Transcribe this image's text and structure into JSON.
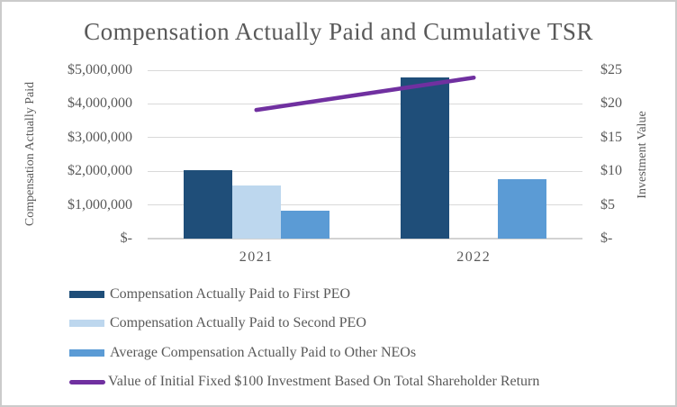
{
  "window": {
    "background": "#FFFFFF",
    "border_color": "#CBCBCB"
  },
  "chart_data": {
    "type": "bar+line combo",
    "title": "Compensation Actually Paid and Cumulative TSR",
    "categories": [
      "2021",
      "2022"
    ],
    "series": [
      {
        "name": "Compensation Actually Paid to First PEO",
        "type": "bar",
        "axis": "left",
        "color": "#1F4E79",
        "values": [
          2040000,
          4790000
        ]
      },
      {
        "name": "Compensation Actually Paid to Second PEO",
        "type": "bar",
        "axis": "left",
        "color": "#BDD7EE",
        "values": [
          1570000,
          null
        ]
      },
      {
        "name": "Average Compensation Actually Paid to Other NEOs",
        "type": "bar",
        "axis": "left",
        "color": "#5B9BD5",
        "values": [
          830000,
          1770000
        ]
      },
      {
        "name": "Value of Initial Fixed $100 Investment Based On Total Shareholder Return",
        "type": "line",
        "axis": "right",
        "color": "#7030A0",
        "values": [
          19.1,
          23.9
        ]
      }
    ],
    "left_axis": {
      "title": "Compensation Actually Paid",
      "min": 0,
      "max": 5000000,
      "tick_interval": 1000000,
      "tick_labels": [
        "$-",
        "$1,000,000",
        "$2,000,000",
        "$3,000,000",
        "$4,000,000",
        "$5,000,000"
      ]
    },
    "right_axis": {
      "title": "Investment Value",
      "min": 0,
      "max": 25,
      "tick_interval": 5,
      "tick_labels": [
        "$-",
        "$5",
        "$10",
        "$15",
        "$20",
        "$25"
      ]
    },
    "grid": true,
    "gridline_color": "#D9D9D9",
    "text_color": "#595959",
    "legend_position": "bottom-left"
  }
}
